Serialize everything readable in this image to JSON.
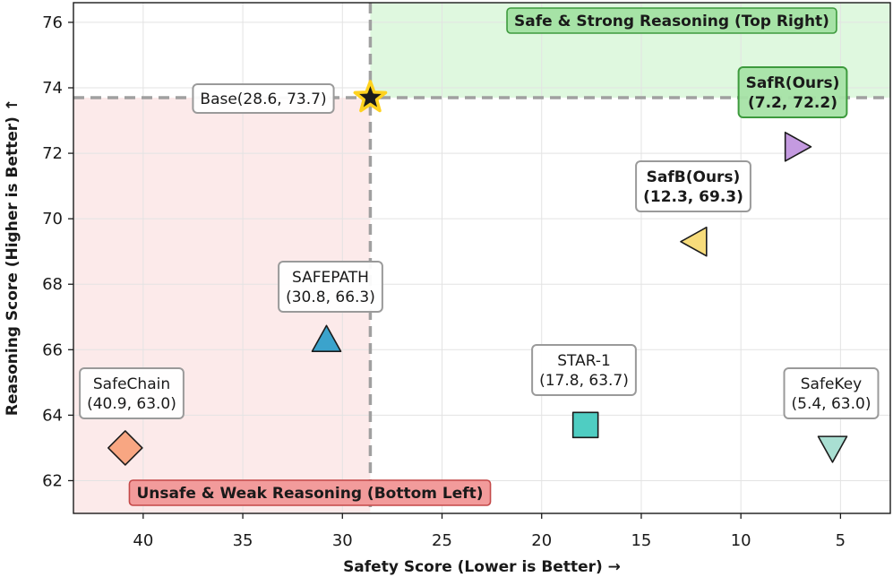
{
  "chart_data": {
    "type": "scatter",
    "xlabel": "Safety Score (Lower is Better) →",
    "ylabel": "Reasoning Score (Higher is Better) ↑",
    "xlim": [
      43.5,
      2.5
    ],
    "ylim": [
      61.0,
      76.6
    ],
    "x_reversed": true,
    "xticks": [
      40,
      35,
      30,
      25,
      20,
      15,
      10,
      5
    ],
    "yticks": [
      62,
      64,
      66,
      68,
      70,
      72,
      74,
      76
    ],
    "grid": true,
    "baseline": {
      "x": 28.6,
      "y": 73.7
    },
    "regions": [
      {
        "name": "safe-strong",
        "label": "Safe & Strong Reasoning (Top Right)",
        "fill": "#d4f5d4",
        "box_fill": "#a6e3a6",
        "box_edge": "#3d9a3d"
      },
      {
        "name": "unsafe-weak",
        "label": "Unsafe & Weak Reasoning (Bottom Left)",
        "fill": "#fbe3e3",
        "box_fill": "#f29b9b",
        "box_edge": "#c44848"
      }
    ],
    "points": [
      {
        "name": "Base",
        "x": 28.6,
        "y": 73.7,
        "marker": "star",
        "color": "#1b1b1b",
        "label_lines": [
          "Base(28.6, 73.7)"
        ],
        "bold": false,
        "box": "white"
      },
      {
        "name": "SafR(Ours)",
        "x": 7.2,
        "y": 72.2,
        "marker": "triangle-right",
        "color": "#c49ae0",
        "label_lines": [
          "SafR(Ours)",
          "(7.2, 72.2)"
        ],
        "bold": true,
        "box": "green"
      },
      {
        "name": "SafB(Ours)",
        "x": 12.3,
        "y": 69.3,
        "marker": "triangle-left",
        "color": "#f7dc7b",
        "label_lines": [
          "SafB(Ours)",
          "(12.3, 69.3)"
        ],
        "bold": true,
        "box": "white"
      },
      {
        "name": "SAFEPATH",
        "x": 30.8,
        "y": 66.3,
        "marker": "triangle-up",
        "color": "#3ba3cc",
        "label_lines": [
          "SAFEPATH",
          "(30.8, 66.3)"
        ],
        "bold": false,
        "box": "white"
      },
      {
        "name": "STAR-1",
        "x": 17.8,
        "y": 63.7,
        "marker": "square",
        "color": "#4fcdc2",
        "label_lines": [
          "STAR-1",
          "(17.8, 63.7)"
        ],
        "bold": false,
        "box": "white"
      },
      {
        "name": "SafeChain",
        "x": 40.9,
        "y": 63.0,
        "marker": "diamond",
        "color": "#f8a682",
        "label_lines": [
          "SafeChain",
          "(40.9, 63.0)"
        ],
        "bold": false,
        "box": "white"
      },
      {
        "name": "SafeKey",
        "x": 5.4,
        "y": 63.0,
        "marker": "triangle-down",
        "color": "#a9dfd2",
        "label_lines": [
          "SafeKey",
          "(5.4, 63.0)"
        ],
        "bold": false,
        "box": "white"
      }
    ]
  }
}
